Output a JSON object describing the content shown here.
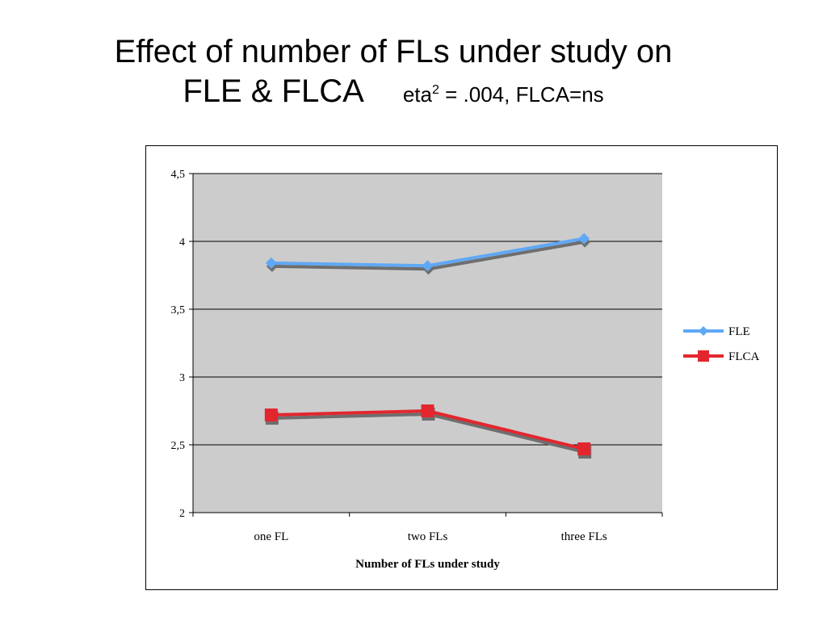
{
  "title": {
    "line1": "Effect of number of FLs under study on",
    "line2": "FLE & FLCA",
    "stats_prefix": "eta",
    "stats_sup": "2",
    "stats_suffix": " = .004, FLCA=ns"
  },
  "chart_data": {
    "type": "line",
    "categories": [
      "one FL",
      "two FLs",
      "three FLs"
    ],
    "series": [
      {
        "name": "FLE",
        "values": [
          3.84,
          3.82,
          4.02
        ],
        "color": "#5FA8F5",
        "marker": "diamond"
      },
      {
        "name": "FLCA",
        "values": [
          2.72,
          2.75,
          2.47
        ],
        "color": "#E3262E",
        "marker": "square"
      }
    ],
    "yticks": [
      "2",
      "2,5",
      "3",
      "3,5",
      "4",
      "4,5"
    ],
    "ytick_values": [
      2,
      2.5,
      3,
      3.5,
      4,
      4.5
    ],
    "ylim": [
      2,
      4.5
    ],
    "xlabel": "Number of FLs under study",
    "ylabel": "",
    "grid": true,
    "legend_position": "right",
    "plot_background": "#CCCCCC"
  }
}
